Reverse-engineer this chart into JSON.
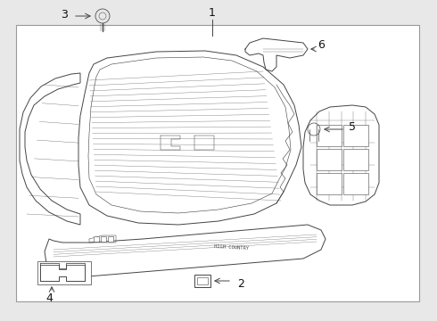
{
  "bg_color": "#e8e8e8",
  "box_bg": "#f2f2f2",
  "line_color": "#444444",
  "line_color2": "#666666",
  "text_color": "#111111",
  "figsize": [
    4.9,
    3.6
  ],
  "dpi": 100
}
